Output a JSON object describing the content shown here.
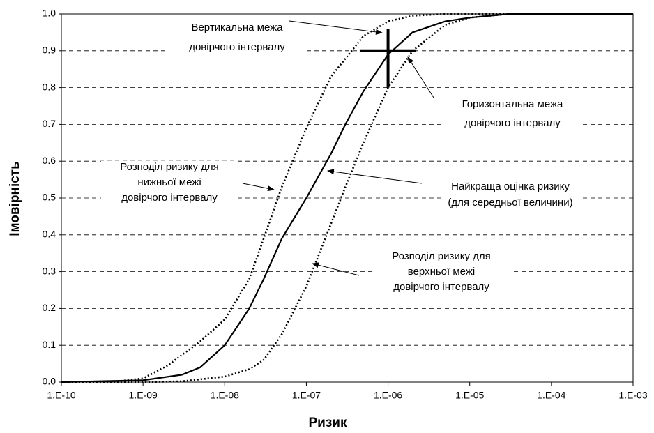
{
  "chart_data": {
    "type": "line",
    "xlabel": "Ризик",
    "ylabel": "Імовірність",
    "xscale": "log",
    "xlim": [
      1e-10,
      0.001
    ],
    "xticks": [
      {
        "value": 1e-10,
        "label": "1.E-10"
      },
      {
        "value": 1e-09,
        "label": "1.E-09"
      },
      {
        "value": 1e-08,
        "label": "1.E-08"
      },
      {
        "value": 1e-07,
        "label": "1.E-07"
      },
      {
        "value": 1e-06,
        "label": "1.E-06"
      },
      {
        "value": 1e-05,
        "label": "1.E-05"
      },
      {
        "value": 0.0001,
        "label": "1.E-04"
      },
      {
        "value": 0.001,
        "label": "1.E-03"
      }
    ],
    "ylim": [
      0,
      1
    ],
    "yticks": [
      {
        "value": 0,
        "label": "0.0"
      },
      0.1,
      0.2,
      0.3,
      0.4,
      0.5,
      0.6,
      0.7,
      0.8,
      0.9,
      {
        "value": 1,
        "label": "1.0"
      }
    ],
    "grid": true,
    "series": [
      {
        "name": "Найкраща оцінка ризику",
        "color": "#000000",
        "style": "solid",
        "x": [
          1e-10,
          1e-09,
          3e-09,
          5e-09,
          1e-08,
          2e-08,
          3e-08,
          5e-08,
          1e-07,
          2e-07,
          3e-07,
          5e-07,
          1e-06,
          2e-06,
          5e-06,
          1e-05,
          3e-05,
          0.001
        ],
        "values": [
          0,
          0.005,
          0.02,
          0.04,
          0.1,
          0.2,
          0.28,
          0.39,
          0.5,
          0.62,
          0.7,
          0.79,
          0.89,
          0.95,
          0.98,
          0.99,
          1,
          1
        ]
      },
      {
        "name": "Розподіл ризику для нижньої межі",
        "color": "#000000",
        "style": "dotted",
        "x": [
          1e-10,
          5e-10,
          1e-09,
          2e-09,
          5e-09,
          1e-08,
          2e-08,
          3e-08,
          5e-08,
          1e-07,
          2e-07,
          5e-07,
          1e-06,
          2e-06,
          5e-06,
          0.001
        ],
        "values": [
          0,
          0.002,
          0.01,
          0.045,
          0.11,
          0.17,
          0.28,
          0.39,
          0.53,
          0.69,
          0.83,
          0.94,
          0.98,
          0.995,
          1,
          1
        ]
      },
      {
        "name": "Розподіл ризику для верхньої межі",
        "color": "#000000",
        "style": "dotted",
        "x": [
          1e-10,
          1e-09,
          3e-09,
          1e-08,
          2e-08,
          3e-08,
          5e-08,
          1e-07,
          2e-07,
          3e-07,
          5e-07,
          1e-06,
          2e-06,
          5e-06,
          1e-05,
          3e-05,
          0.001
        ],
        "values": [
          0,
          0,
          0.002,
          0.015,
          0.035,
          0.06,
          0.13,
          0.26,
          0.43,
          0.53,
          0.65,
          0.8,
          0.9,
          0.97,
          0.99,
          1,
          1
        ]
      }
    ],
    "confidence_cross": {
      "x": 1e-06,
      "y": 0.9,
      "x_range": [
        4.5e-07,
        2.2e-06
      ],
      "y_range": [
        0.8,
        0.96
      ]
    },
    "annotations": [
      {
        "lines": [
          "Вертикальна межа",
          "довірчого інтервалу"
        ]
      },
      {
        "lines": [
          "Горизонтальна межа",
          "довірчого інтервалу"
        ]
      },
      {
        "lines": [
          "Розподіл ризику для",
          "нижньої межі",
          "довірчого інтервалу"
        ]
      },
      {
        "lines": [
          "Найкраща оцінка ризику",
          "(для середньої величини)"
        ]
      },
      {
        "lines": [
          "Розподіл ризику для",
          "верхньої межі",
          "довірчого інтервалу"
        ]
      }
    ]
  }
}
